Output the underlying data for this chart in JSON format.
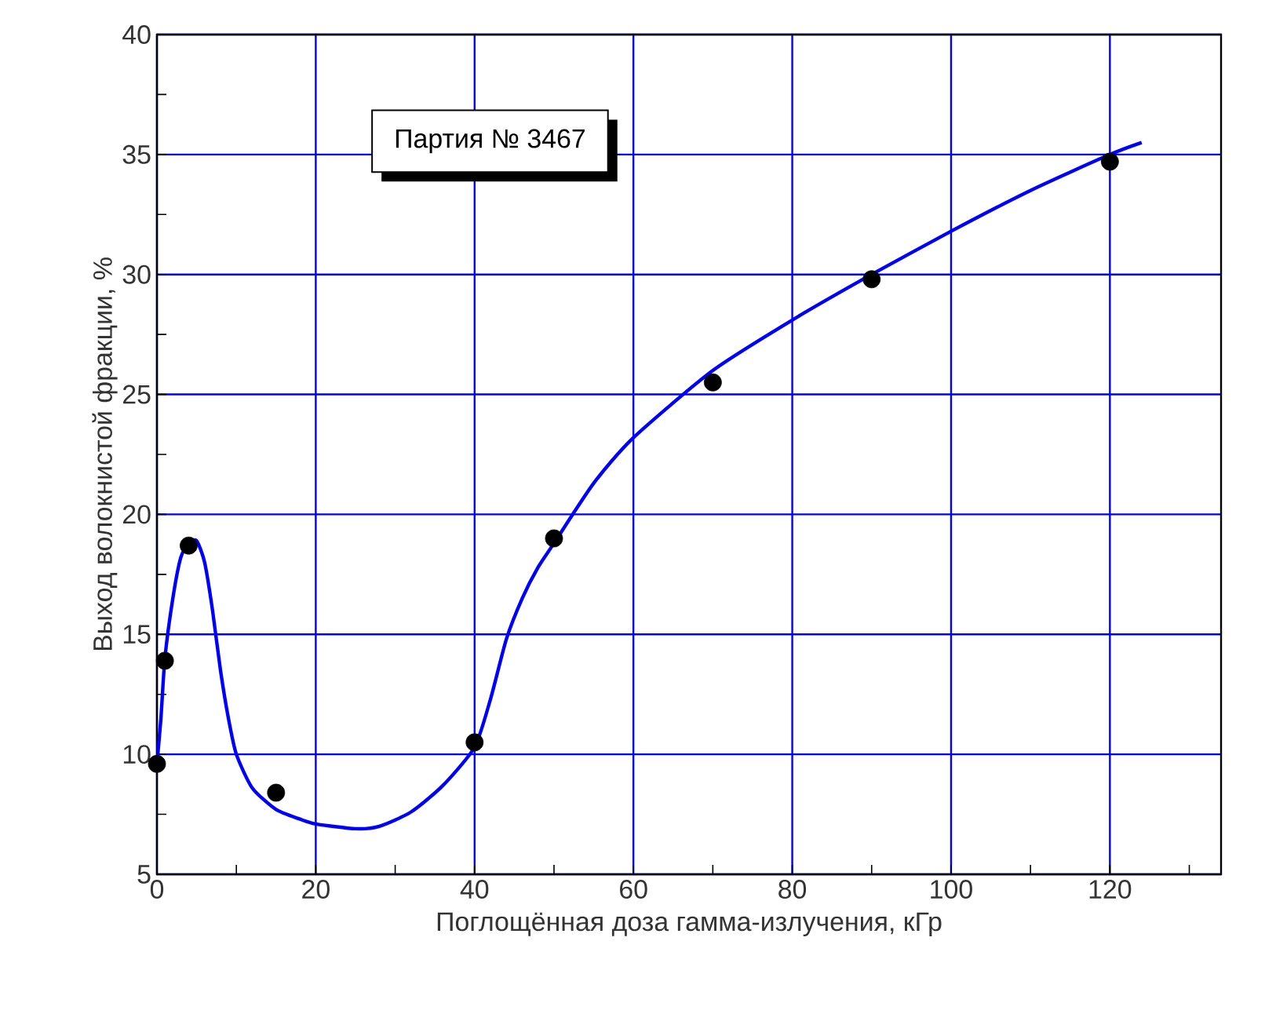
{
  "chart_data": {
    "type": "line",
    "xlabel": "Поглощённая доза гамма-излучения, кГр",
    "ylabel": "Выход волокнистой фракции, %",
    "annotations": [
      "Партия № 3467"
    ],
    "xlim": [
      0,
      134
    ],
    "ylim": [
      5,
      40
    ],
    "xticks": [
      0,
      {
        "value": 10,
        "label": null
      },
      20,
      {
        "value": 30,
        "label": null
      },
      40,
      {
        "value": 50,
        "label": null
      },
      60,
      {
        "value": 70,
        "label": null
      },
      80,
      {
        "value": 90,
        "label": null
      },
      100,
      {
        "value": 110,
        "label": null
      },
      120,
      {
        "value": 130,
        "label": null
      }
    ],
    "yticks": [
      5,
      {
        "value": 7.5,
        "label": null
      },
      10,
      {
        "value": 12.5,
        "label": null
      },
      15,
      {
        "value": 17.5,
        "label": null
      },
      20,
      {
        "value": 22.5,
        "label": null
      },
      25,
      {
        "value": 27.5,
        "label": null
      },
      30,
      {
        "value": 32.5,
        "label": null
      },
      35,
      {
        "value": 37.5,
        "label": null
      },
      40
    ],
    "grid": true,
    "series": [
      {
        "color": "#0000ff",
        "x": [
          0,
          0.5,
          1,
          2,
          3,
          4,
          5,
          6,
          7,
          8,
          9,
          10,
          12,
          15,
          18,
          20,
          25,
          28,
          32,
          36,
          40,
          42,
          44,
          46,
          48,
          50,
          55,
          60,
          70,
          80,
          90,
          100,
          110,
          120,
          124
        ],
        "values": [
          9.6,
          11.5,
          14.0,
          16.5,
          18.2,
          18.8,
          18.9,
          18.0,
          16.0,
          13.5,
          11.5,
          10.0,
          8.6,
          7.7,
          7.3,
          7.1,
          6.9,
          7.0,
          7.6,
          8.7,
          10.3,
          12.3,
          14.8,
          16.5,
          17.8,
          18.8,
          21.3,
          23.2,
          26.0,
          28.1,
          30.0,
          31.8,
          33.5,
          35.0,
          35.5
        ]
      },
      {
        "type": "scatter",
        "color": "#000000",
        "marker": "circle",
        "x": [
          0,
          1,
          4,
          15,
          40,
          50,
          70,
          90,
          120
        ],
        "values": [
          9.6,
          13.9,
          18.7,
          8.4,
          10.5,
          19.0,
          25.5,
          29.8,
          34.7
        ]
      }
    ]
  }
}
